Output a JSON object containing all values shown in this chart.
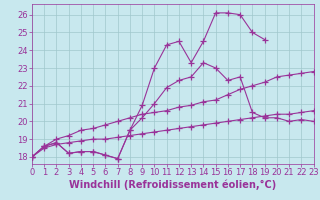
{
  "background_color": "#c8e8ee",
  "grid_color": "#a0c8cc",
  "line_color": "#993399",
  "xlim": [
    0,
    23
  ],
  "ylim": [
    17.6,
    26.6
  ],
  "xticks": [
    0,
    1,
    2,
    3,
    4,
    5,
    6,
    7,
    8,
    9,
    10,
    11,
    12,
    13,
    14,
    15,
    16,
    17,
    18,
    19,
    20,
    21,
    22,
    23
  ],
  "yticks": [
    18,
    19,
    20,
    21,
    22,
    23,
    24,
    25,
    26
  ],
  "xlabel": "Windchill (Refroidissement éolien,°C)",
  "xlabel_fontsize": 7,
  "tick_fontsize": 6,
  "label_color": "#993399",
  "series": [
    {
      "x": [
        0,
        1,
        2,
        3,
        4,
        5,
        6,
        7,
        8,
        9,
        10,
        11,
        12,
        13,
        14,
        15,
        16,
        17,
        18,
        19
      ],
      "y": [
        18.0,
        18.6,
        18.8,
        18.2,
        18.3,
        18.3,
        18.1,
        17.9,
        19.5,
        20.9,
        23.0,
        24.3,
        24.5,
        23.3,
        24.5,
        26.1,
        26.1,
        26.0,
        25.0,
        24.6
      ],
      "marker": true
    },
    {
      "x": [
        0,
        1,
        2,
        3,
        4,
        5,
        6,
        7,
        8,
        9,
        10,
        11,
        12,
        13,
        14,
        15,
        16,
        17,
        18,
        19,
        20,
        21,
        22,
        23
      ],
      "y": [
        18.0,
        18.6,
        18.8,
        18.2,
        18.3,
        18.3,
        18.1,
        17.9,
        19.5,
        20.2,
        21.0,
        21.9,
        22.3,
        22.5,
        23.3,
        23.0,
        22.3,
        22.5,
        20.5,
        20.2,
        20.2,
        20.0,
        20.1,
        20.0
      ],
      "marker": true
    },
    {
      "x": [
        0,
        1,
        2,
        3,
        4,
        5,
        6,
        7,
        8,
        9,
        10,
        11,
        12,
        13,
        14,
        15,
        16,
        17,
        18,
        19,
        20,
        21,
        22,
        23
      ],
      "y": [
        18.0,
        18.6,
        19.0,
        19.2,
        19.5,
        19.6,
        19.8,
        20.0,
        20.2,
        20.4,
        20.5,
        20.6,
        20.8,
        20.9,
        21.1,
        21.2,
        21.5,
        21.8,
        22.0,
        22.2,
        22.5,
        22.6,
        22.7,
        22.8
      ],
      "marker": true
    },
    {
      "x": [
        0,
        1,
        2,
        3,
        4,
        5,
        6,
        7,
        8,
        9,
        10,
        11,
        12,
        13,
        14,
        15,
        16,
        17,
        18,
        19,
        20,
        21,
        22,
        23
      ],
      "y": [
        18.0,
        18.5,
        18.7,
        18.8,
        18.9,
        19.0,
        19.0,
        19.1,
        19.2,
        19.3,
        19.4,
        19.5,
        19.6,
        19.7,
        19.8,
        19.9,
        20.0,
        20.1,
        20.2,
        20.3,
        20.4,
        20.4,
        20.5,
        20.6
      ],
      "marker": true
    }
  ]
}
